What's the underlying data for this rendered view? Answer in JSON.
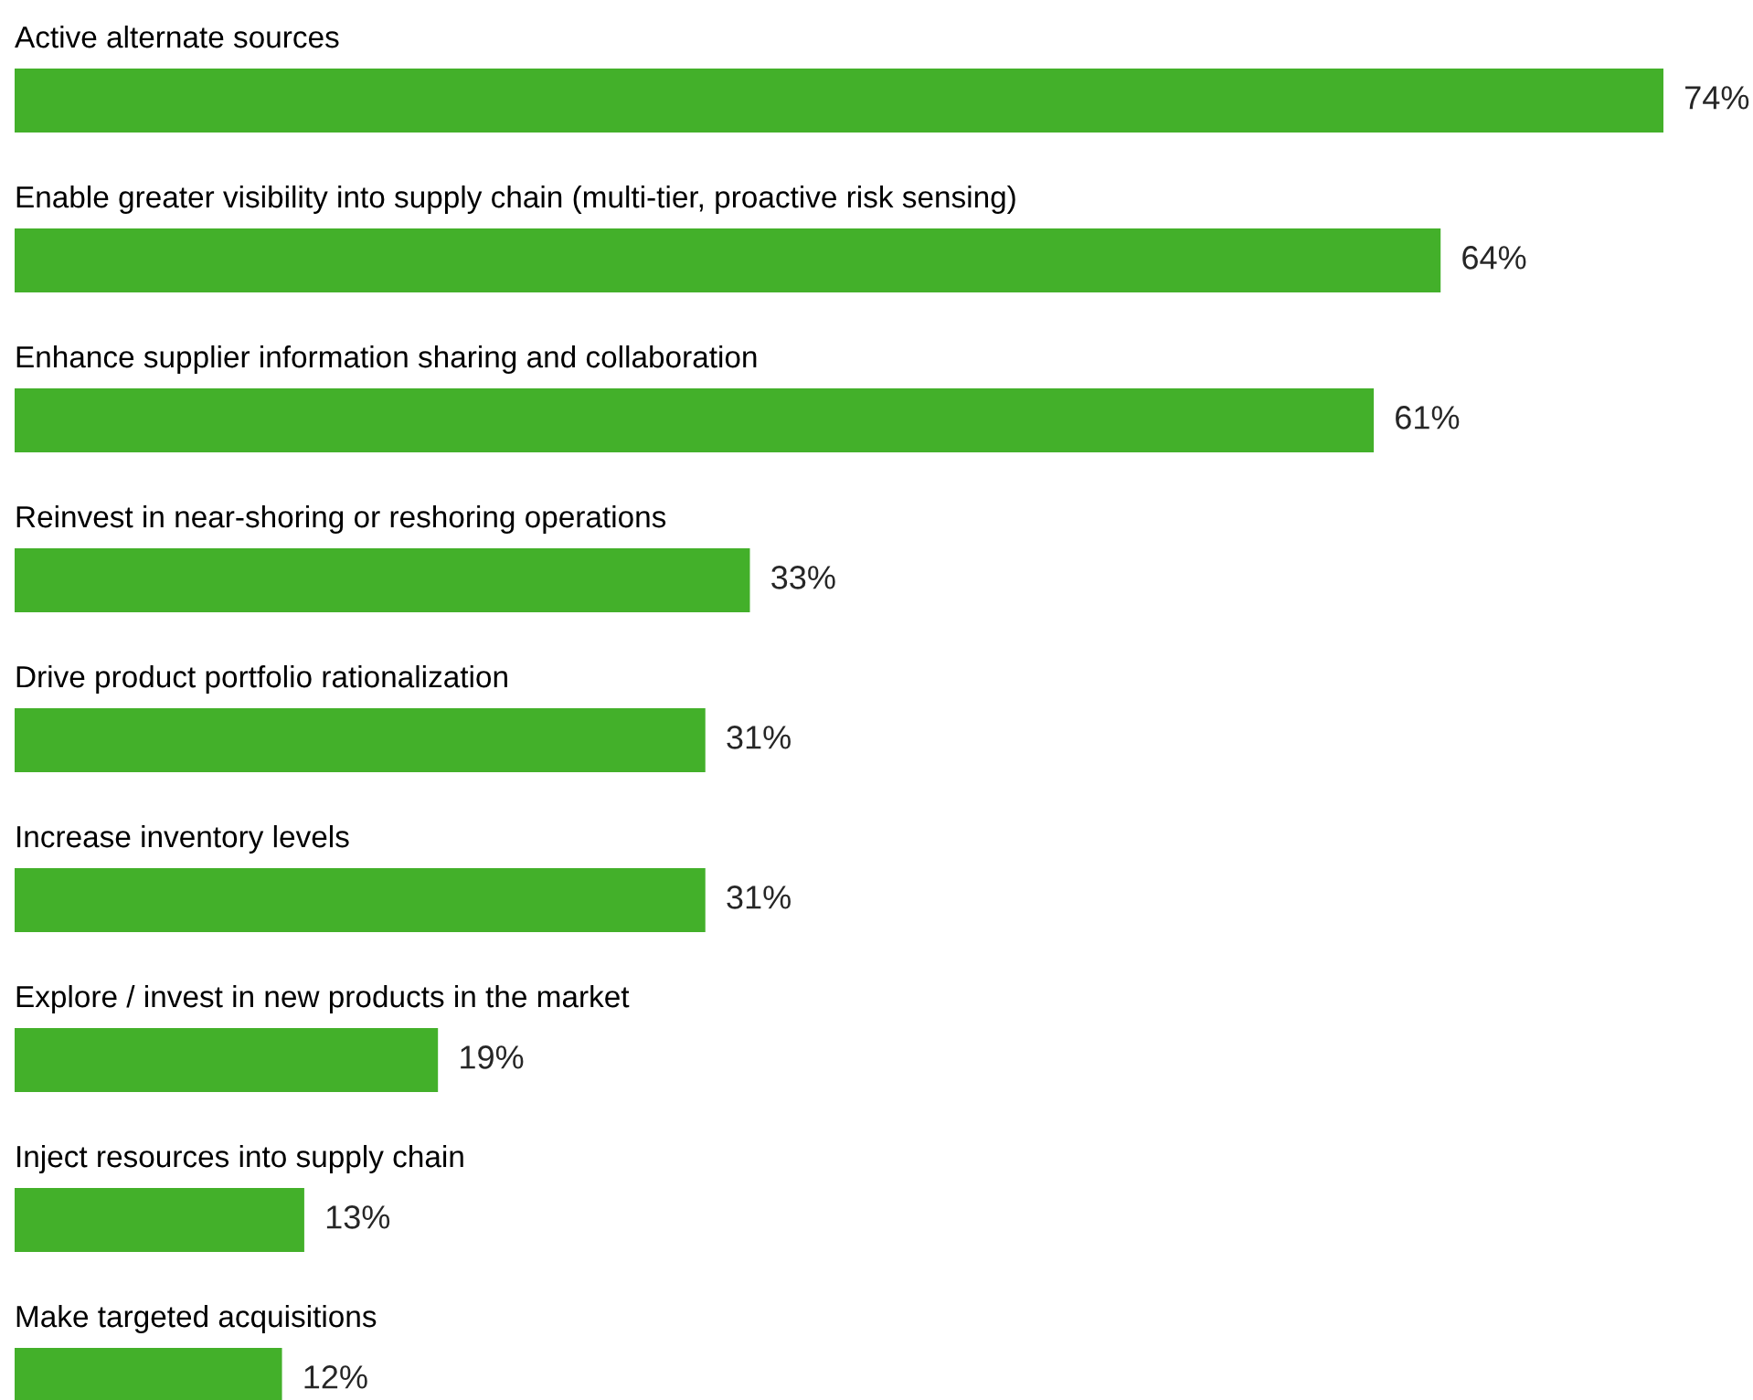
{
  "chart_data": {
    "type": "bar",
    "orientation": "horizontal",
    "categories": [
      "Active alternate sources",
      "Enable greater visibility into supply chain (multi-tier, proactive risk sensing)",
      "Enhance supplier information sharing and collaboration",
      "Reinvest in near-shoring or reshoring operations",
      "Drive product portfolio rationalization",
      "Increase inventory levels",
      "Explore / invest in new products in the market",
      "Inject resources into supply chain",
      "Make targeted acquisitions"
    ],
    "values": [
      74,
      64,
      61,
      33,
      31,
      31,
      19,
      13,
      12
    ],
    "value_labels": [
      "74%",
      "64%",
      "61%",
      "33%",
      "31%",
      "31%",
      "19%",
      "13%",
      "12%"
    ],
    "color": "#43b02a"
  }
}
